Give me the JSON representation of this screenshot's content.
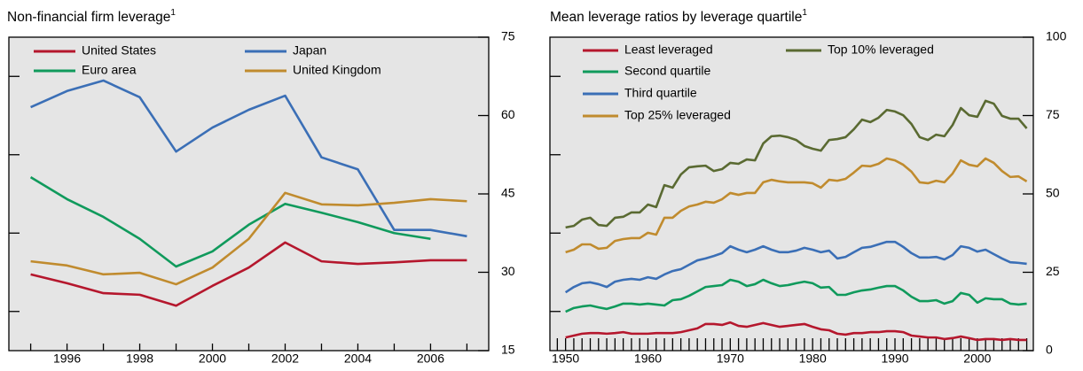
{
  "chart_data": [
    {
      "type": "line",
      "title": "Non-financial firm leverage",
      "title_note": "1",
      "x": [
        1995,
        1996,
        1997,
        1998,
        1999,
        2000,
        2001,
        2002,
        2003,
        2004,
        2005,
        2006,
        2007
      ],
      "xlim": [
        1994.4,
        2007.6
      ],
      "xticks": [
        1996,
        1998,
        2000,
        2002,
        2004,
        2006
      ],
      "xticks_minor": [
        1995,
        1997,
        1999,
        2001,
        2003,
        2005,
        2007
      ],
      "ylim": [
        15,
        75
      ],
      "yticks": [
        15,
        30,
        45,
        60,
        75
      ],
      "yticks_minor": [
        22.5,
        37.5,
        52.5,
        67.5
      ],
      "series": [
        {
          "name": "United States",
          "color": "#b5172d",
          "values": [
            29.6,
            27.9,
            26.0,
            25.7,
            23.6,
            27.4,
            30.9,
            35.7,
            32.1,
            31.6,
            31.9,
            32.3,
            32.3
          ]
        },
        {
          "name": "Japan",
          "color": "#3b6fb6",
          "values": [
            61.6,
            64.7,
            66.7,
            63.5,
            53.1,
            57.7,
            61.1,
            63.8,
            52.0,
            49.7,
            38.1,
            38.1,
            36.9
          ]
        },
        {
          "name": "Euro area",
          "color": "#109a5c",
          "values": [
            48.2,
            44.0,
            40.6,
            36.4,
            31.1,
            34.0,
            39.1,
            43.1,
            41.4,
            39.6,
            37.5,
            36.4,
            null
          ]
        },
        {
          "name": "United Kingdom",
          "color": "#c08b2e",
          "values": [
            32.1,
            31.3,
            29.6,
            29.9,
            27.7,
            30.9,
            36.4,
            45.2,
            43.0,
            42.8,
            43.3,
            44.0,
            43.6
          ]
        }
      ]
    },
    {
      "type": "line",
      "title": "Mean leverage ratios by leverage quartile",
      "title_note": "1",
      "x": [
        1950,
        1951,
        1952,
        1953,
        1954,
        1955,
        1956,
        1957,
        1958,
        1959,
        1960,
        1961,
        1962,
        1963,
        1964,
        1965,
        1966,
        1967,
        1968,
        1969,
        1970,
        1971,
        1972,
        1973,
        1974,
        1975,
        1976,
        1977,
        1978,
        1979,
        1980,
        1981,
        1982,
        1983,
        1984,
        1985,
        1986,
        1987,
        1988,
        1989,
        1990,
        1991,
        1992,
        1993,
        1994,
        1995,
        1996,
        1997,
        1998,
        1999,
        2000,
        2001,
        2002,
        2003,
        2004,
        2005,
        2006
      ],
      "xlim": [
        1948.1,
        2006.8
      ],
      "xticks": [
        1950,
        1960,
        1970,
        1980,
        1990,
        2000
      ],
      "xticks_minor": [
        1949,
        1951,
        1952,
        1953,
        1954,
        1955,
        1956,
        1957,
        1958,
        1959,
        1961,
        1962,
        1963,
        1964,
        1965,
        1966,
        1967,
        1968,
        1969,
        1971,
        1972,
        1973,
        1974,
        1975,
        1976,
        1977,
        1978,
        1979,
        1981,
        1982,
        1983,
        1984,
        1985,
        1986,
        1987,
        1988,
        1989,
        1991,
        1992,
        1993,
        1994,
        1995,
        1996,
        1997,
        1998,
        1999,
        2001,
        2002,
        2003,
        2004,
        2005,
        2006
      ],
      "ylim": [
        0,
        100
      ],
      "yticks": [
        0,
        25,
        50,
        75,
        100
      ],
      "yticks_minor": [
        12.5,
        37.5,
        62.5,
        87.5
      ],
      "series": [
        {
          "name": "Least leveraged",
          "color": "#b5172d",
          "values": [
            4.2,
            4.8,
            5.4,
            5.6,
            5.6,
            5.4,
            5.6,
            5.9,
            5.4,
            5.4,
            5.4,
            5.6,
            5.6,
            5.6,
            5.9,
            6.5,
            7.1,
            8.5,
            8.5,
            8.2,
            9.0,
            7.9,
            7.6,
            8.2,
            8.8,
            8.2,
            7.6,
            7.9,
            8.2,
            8.5,
            7.6,
            6.8,
            6.5,
            5.4,
            5.1,
            5.6,
            5.6,
            5.9,
            5.9,
            6.2,
            6.2,
            5.9,
            4.8,
            4.5,
            4.2,
            4.2,
            3.7,
            4.0,
            4.5,
            4.0,
            3.4,
            3.7,
            3.7,
            3.4,
            3.7,
            3.4,
            3.4
          ]
        },
        {
          "name": "Second quartile",
          "color": "#109a5c",
          "values": [
            12.4,
            13.6,
            14.1,
            14.4,
            13.8,
            13.3,
            14.1,
            15.0,
            15.0,
            14.7,
            15.0,
            14.7,
            14.4,
            16.1,
            16.4,
            17.5,
            18.9,
            20.3,
            20.6,
            20.9,
            22.6,
            22.0,
            20.6,
            21.2,
            22.6,
            21.5,
            20.6,
            20.9,
            21.5,
            22.0,
            21.5,
            20.1,
            20.3,
            17.8,
            17.8,
            18.6,
            19.2,
            19.5,
            20.1,
            20.6,
            20.6,
            19.2,
            17.2,
            15.8,
            15.8,
            16.1,
            15.0,
            15.8,
            18.4,
            17.8,
            15.3,
            16.7,
            16.4,
            16.4,
            15.0,
            14.7,
            15.0
          ]
        },
        {
          "name": "Third quartile",
          "color": "#3b6fb6",
          "values": [
            18.6,
            20.3,
            21.5,
            21.8,
            21.2,
            20.3,
            22.0,
            22.6,
            22.9,
            22.6,
            23.4,
            22.9,
            24.3,
            25.4,
            26.0,
            27.4,
            28.8,
            29.4,
            30.2,
            31.1,
            33.3,
            32.2,
            31.4,
            32.2,
            33.3,
            32.2,
            31.4,
            31.4,
            31.9,
            32.8,
            32.2,
            31.4,
            31.9,
            29.4,
            29.9,
            31.4,
            32.8,
            33.1,
            33.9,
            34.7,
            34.7,
            33.1,
            31.1,
            29.7,
            29.7,
            29.9,
            29.1,
            30.5,
            33.3,
            32.8,
            31.6,
            32.2,
            30.8,
            29.4,
            28.2,
            28.0,
            27.7
          ]
        },
        {
          "name": "Top 25% leveraged",
          "color": "#c08b2e",
          "values": [
            31.4,
            32.2,
            33.9,
            33.9,
            32.5,
            32.8,
            35.0,
            35.6,
            35.9,
            35.9,
            37.6,
            37.0,
            42.4,
            42.4,
            44.6,
            46.0,
            46.6,
            47.5,
            47.2,
            48.3,
            50.3,
            49.7,
            50.3,
            50.3,
            53.7,
            54.5,
            54.0,
            53.7,
            53.7,
            53.7,
            53.4,
            52.0,
            54.5,
            54.2,
            54.8,
            56.8,
            59.0,
            58.8,
            59.6,
            61.3,
            60.7,
            59.3,
            57.1,
            53.7,
            53.4,
            54.2,
            53.7,
            56.5,
            60.7,
            59.3,
            58.8,
            61.3,
            59.9,
            57.3,
            55.4,
            55.6,
            54.0
          ]
        },
        {
          "name": "Top 10% leveraged",
          "color": "#5a6a32",
          "values": [
            39.3,
            39.8,
            41.8,
            42.4,
            40.1,
            39.8,
            42.4,
            42.7,
            44.1,
            44.1,
            46.6,
            45.8,
            52.8,
            52.0,
            56.2,
            58.5,
            58.8,
            59.0,
            57.3,
            57.9,
            59.9,
            59.6,
            61.0,
            60.7,
            66.1,
            68.4,
            68.6,
            68.1,
            67.2,
            65.3,
            64.4,
            63.8,
            67.2,
            67.5,
            68.1,
            70.6,
            73.7,
            72.9,
            74.3,
            76.8,
            76.3,
            75.1,
            72.3,
            68.1,
            67.2,
            68.9,
            68.4,
            72.0,
            77.4,
            75.1,
            74.6,
            79.7,
            78.8,
            74.9,
            74.0,
            74.0,
            70.9
          ]
        }
      ]
    }
  ]
}
